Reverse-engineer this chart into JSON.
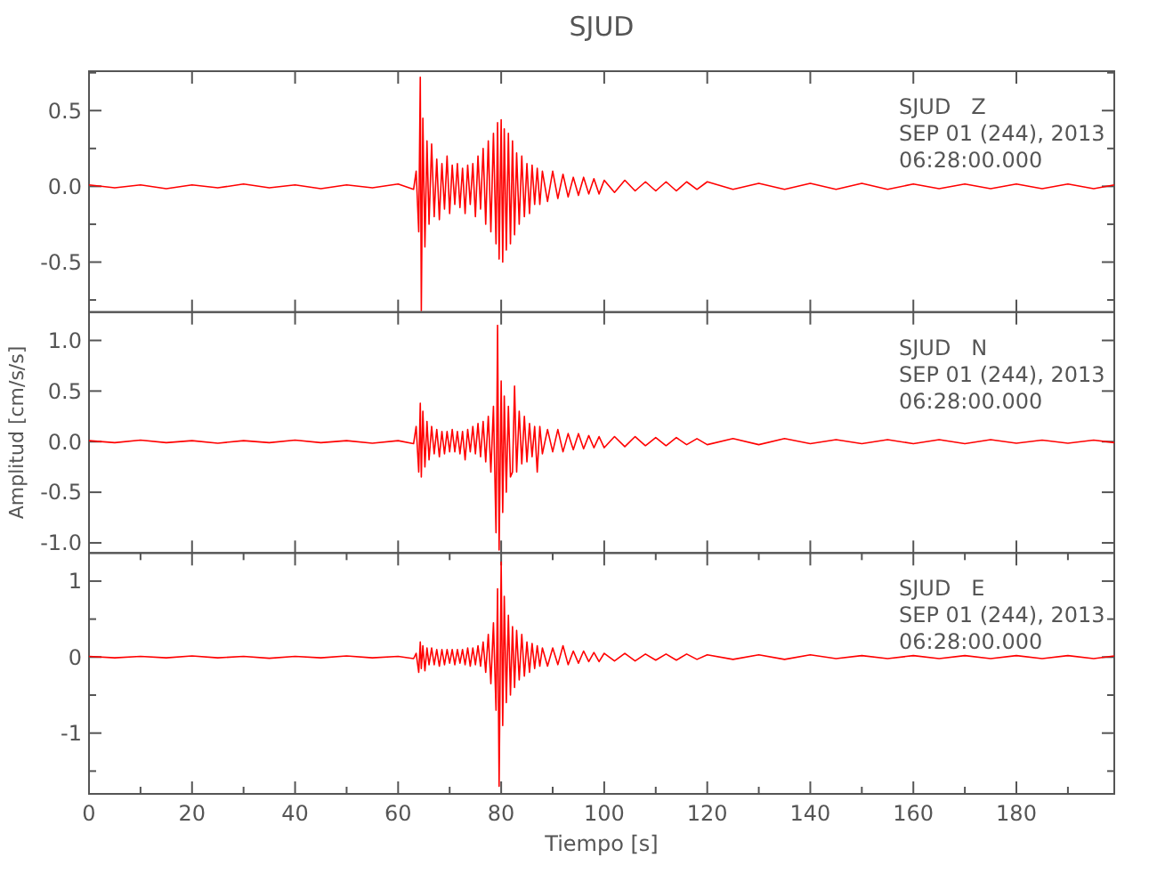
{
  "chart_data": [
    {
      "type": "line",
      "title": "SJUD",
      "annotations": [
        "SJUD   Z",
        "SEP 01 (244), 2013",
        "06:28:00.000"
      ],
      "xlim": [
        0,
        199
      ],
      "ylim": [
        -0.83,
        0.76
      ],
      "xticks": [
        {
          "value": 0,
          "label": null
        },
        {
          "value": 20,
          "label": null
        },
        {
          "value": 40,
          "label": null
        },
        {
          "value": 60,
          "label": null
        },
        {
          "value": 80,
          "label": null
        },
        {
          "value": 100,
          "label": null
        },
        {
          "value": 120,
          "label": null
        },
        {
          "value": 140,
          "label": null
        },
        {
          "value": 160,
          "label": null
        },
        {
          "value": 180,
          "label": null
        }
      ],
      "yticks": [
        {
          "value": 0.75,
          "label": null
        },
        0.5,
        {
          "value": 0.25,
          "label": null
        },
        {
          "value": 0,
          "label": "0.0"
        },
        {
          "value": -0.25,
          "label": null
        },
        -0.5,
        {
          "value": -0.75,
          "label": null
        }
      ],
      "tick_labels": "y",
      "grid": false,
      "series": [
        {
          "color": "#ff0000",
          "x": [
            0,
            5,
            10,
            15,
            20,
            25,
            30,
            35,
            40,
            45,
            50,
            55,
            60,
            63,
            63.5,
            64,
            64.3,
            64.5,
            64.8,
            65.2,
            65.6,
            66,
            66.5,
            67,
            67.5,
            68,
            68.5,
            69,
            69.5,
            70,
            70.5,
            71,
            71.5,
            72,
            72.5,
            73,
            73.5,
            74,
            74.5,
            75,
            75.5,
            76,
            76.5,
            77,
            77.5,
            78,
            78.5,
            79,
            79.3,
            79.6,
            80,
            80.3,
            80.6,
            81,
            81.4,
            81.8,
            82.2,
            82.6,
            83,
            83.5,
            84,
            84.5,
            85,
            85.5,
            86,
            86.5,
            87,
            87.5,
            88,
            89,
            90,
            91,
            92,
            93,
            94,
            95,
            96,
            97,
            98,
            99,
            100,
            102,
            104,
            106,
            108,
            110,
            112,
            114,
            116,
            118,
            120,
            125,
            130,
            135,
            140,
            145,
            150,
            155,
            160,
            165,
            170,
            175,
            180,
            185,
            190,
            195,
            199
          ],
          "values": [
            0.01,
            -0.01,
            0.01,
            -0.015,
            0.01,
            -0.01,
            0.015,
            -0.01,
            0.01,
            -0.015,
            0.01,
            -0.01,
            0.015,
            -0.02,
            0.1,
            -0.3,
            0.72,
            -0.82,
            0.45,
            -0.4,
            0.3,
            -0.25,
            0.28,
            -0.2,
            0.18,
            -0.22,
            0.15,
            -0.15,
            0.2,
            -0.18,
            0.14,
            -0.12,
            0.15,
            -0.14,
            0.12,
            -0.18,
            0.14,
            -0.12,
            0.15,
            -0.2,
            0.2,
            -0.15,
            0.25,
            -0.25,
            0.3,
            -0.3,
            0.35,
            -0.38,
            0.42,
            -0.48,
            0.44,
            -0.5,
            0.38,
            -0.42,
            0.35,
            -0.38,
            0.3,
            -0.32,
            0.22,
            -0.25,
            0.2,
            -0.2,
            0.15,
            -0.18,
            0.14,
            -0.12,
            0.12,
            -0.12,
            0.1,
            -0.1,
            0.1,
            -0.08,
            0.08,
            -0.07,
            0.06,
            -0.06,
            0.06,
            -0.05,
            0.05,
            -0.05,
            0.04,
            -0.04,
            0.04,
            -0.03,
            0.03,
            -0.03,
            0.03,
            -0.03,
            0.03,
            -0.02,
            0.03,
            -0.02,
            0.02,
            -0.02,
            0.02,
            -0.02,
            0.02,
            -0.02,
            0.015,
            -0.015,
            0.015,
            -0.015,
            0.015,
            -0.015,
            0.015,
            -0.015,
            0.01
          ]
        }
      ]
    },
    {
      "type": "line",
      "ylabel": "Amplitud [cm/s/s]",
      "annotations": [
        "SJUD   N",
        "SEP 01 (244), 2013",
        "06:28:00.000"
      ],
      "xlim": [
        0,
        199
      ],
      "ylim": [
        -1.1,
        1.28
      ],
      "xticks": [
        {
          "value": 0,
          "label": null
        },
        {
          "value": 20,
          "label": null
        },
        {
          "value": 40,
          "label": null
        },
        {
          "value": 60,
          "label": null
        },
        {
          "value": 80,
          "label": null
        },
        {
          "value": 100,
          "label": null
        },
        {
          "value": 120,
          "label": null
        },
        {
          "value": 140,
          "label": null
        },
        {
          "value": 160,
          "label": null
        },
        {
          "value": 180,
          "label": null
        }
      ],
      "yticks": [
        {
          "value": 1,
          "label": "1.0"
        },
        0.5,
        {
          "value": 0,
          "label": "0.0"
        },
        -0.5,
        {
          "value": -1,
          "label": "-1.0"
        }
      ],
      "tick_labels": "y",
      "grid": false,
      "series": [
        {
          "color": "#ff0000",
          "x": [
            0,
            5,
            10,
            15,
            20,
            25,
            30,
            35,
            40,
            45,
            50,
            55,
            60,
            63,
            63.5,
            64,
            64.3,
            64.5,
            64.8,
            65.2,
            65.6,
            66,
            66.5,
            67,
            67.5,
            68,
            68.5,
            69,
            69.5,
            70,
            70.5,
            71,
            71.5,
            72,
            72.5,
            73,
            73.5,
            74,
            74.5,
            75,
            75.5,
            76,
            76.5,
            77,
            77.5,
            78,
            78.5,
            79,
            79.3,
            79.6,
            80,
            80.3,
            80.6,
            81,
            81.4,
            81.8,
            82.2,
            82.6,
            83,
            83.5,
            84,
            84.5,
            85,
            85.5,
            86,
            86.5,
            87,
            87.5,
            88,
            89,
            90,
            91,
            92,
            93,
            94,
            95,
            96,
            97,
            98,
            99,
            100,
            102,
            104,
            106,
            108,
            110,
            112,
            114,
            116,
            118,
            120,
            125,
            130,
            135,
            140,
            145,
            150,
            155,
            160,
            165,
            170,
            175,
            180,
            185,
            190,
            195,
            199
          ],
          "values": [
            0.01,
            -0.01,
            0.015,
            -0.01,
            0.01,
            -0.015,
            0.01,
            -0.01,
            0.015,
            -0.01,
            0.01,
            -0.015,
            0.01,
            -0.02,
            0.15,
            -0.3,
            0.38,
            -0.35,
            0.3,
            -0.25,
            0.2,
            -0.18,
            0.15,
            -0.12,
            0.12,
            -0.15,
            0.1,
            -0.12,
            0.1,
            -0.1,
            0.12,
            -0.1,
            0.1,
            -0.12,
            0.1,
            -0.18,
            0.12,
            -0.1,
            0.15,
            -0.12,
            0.18,
            -0.15,
            0.2,
            -0.2,
            0.25,
            -0.3,
            0.35,
            -0.9,
            1.15,
            -1.07,
            0.6,
            -0.7,
            0.45,
            -0.5,
            0.35,
            -0.35,
            -0.3,
            0.55,
            -0.3,
            0.3,
            -0.22,
            0.25,
            -0.2,
            0.18,
            -0.15,
            0.15,
            -0.3,
            0.15,
            -0.12,
            0.12,
            -0.1,
            0.12,
            -0.1,
            0.08,
            -0.08,
            0.08,
            -0.07,
            0.06,
            -0.06,
            0.05,
            -0.06,
            0.05,
            -0.05,
            0.05,
            -0.04,
            0.04,
            -0.04,
            0.04,
            -0.03,
            0.03,
            -0.03,
            0.03,
            -0.03,
            0.03,
            -0.02,
            0.02,
            -0.02,
            0.02,
            -0.02,
            0.02,
            -0.02,
            0.02,
            -0.015,
            0.015,
            -0.015,
            0.015,
            -0.01
          ]
        }
      ]
    },
    {
      "type": "line",
      "xlabel": "Tiempo [s]",
      "annotations": [
        "SJUD   E",
        "SEP 01 (244), 2013",
        "06:28:00.000"
      ],
      "xlim": [
        0,
        199
      ],
      "ylim": [
        -1.8,
        1.37
      ],
      "xticks": [
        0,
        {
          "value": 10,
          "label": null
        },
        20,
        {
          "value": 30,
          "label": null
        },
        40,
        {
          "value": 50,
          "label": null
        },
        60,
        {
          "value": 70,
          "label": null
        },
        80,
        {
          "value": 90,
          "label": null
        },
        100,
        {
          "value": 110,
          "label": null
        },
        120,
        {
          "value": 130,
          "label": null
        },
        140,
        {
          "value": 150,
          "label": null
        },
        160,
        {
          "value": 170,
          "label": null
        },
        180,
        {
          "value": 190,
          "label": null
        }
      ],
      "yticks": [
        1,
        {
          "value": 0.5,
          "label": null
        },
        0,
        {
          "value": -0.5,
          "label": null
        },
        -1,
        {
          "value": -1.5,
          "label": null
        }
      ],
      "grid": false,
      "series": [
        {
          "color": "#ff0000",
          "x": [
            0,
            5,
            10,
            15,
            20,
            25,
            30,
            35,
            40,
            45,
            50,
            55,
            60,
            63,
            63.5,
            64,
            64.3,
            64.5,
            64.8,
            65.2,
            65.6,
            66,
            66.5,
            67,
            67.5,
            68,
            68.5,
            69,
            69.5,
            70,
            70.5,
            71,
            71.5,
            72,
            72.5,
            73,
            73.5,
            74,
            74.5,
            75,
            75.5,
            76,
            76.5,
            77,
            77.5,
            78,
            78.5,
            79,
            79.3,
            79.6,
            80,
            80.3,
            80.6,
            81,
            81.4,
            81.8,
            82.2,
            82.6,
            83,
            83.5,
            84,
            84.5,
            85,
            85.5,
            86,
            86.5,
            87,
            87.5,
            88,
            89,
            90,
            91,
            92,
            93,
            94,
            95,
            96,
            97,
            98,
            99,
            100,
            102,
            104,
            106,
            108,
            110,
            112,
            114,
            116,
            118,
            120,
            125,
            130,
            135,
            140,
            145,
            150,
            155,
            160,
            165,
            170,
            175,
            180,
            185,
            190,
            195,
            199
          ],
          "values": [
            0.01,
            -0.01,
            0.01,
            -0.01,
            0.015,
            -0.01,
            0.01,
            -0.015,
            0.01,
            -0.01,
            0.015,
            -0.01,
            0.01,
            -0.02,
            0.05,
            -0.2,
            0.2,
            -0.15,
            0.15,
            -0.18,
            0.12,
            -0.1,
            0.12,
            -0.1,
            0.1,
            -0.12,
            0.1,
            -0.1,
            0.1,
            -0.08,
            0.1,
            -0.1,
            0.1,
            -0.08,
            0.1,
            -0.1,
            0.12,
            -0.12,
            0.12,
            -0.1,
            0.15,
            -0.12,
            0.2,
            -0.2,
            0.3,
            -0.35,
            0.45,
            -0.7,
            0.9,
            -1.7,
            1.25,
            -0.9,
            0.8,
            -0.6,
            0.55,
            -0.5,
            0.4,
            -0.4,
            0.35,
            -0.3,
            0.3,
            -0.25,
            0.2,
            -0.2,
            0.18,
            -0.15,
            0.15,
            -0.12,
            0.12,
            -0.12,
            0.12,
            -0.1,
            0.15,
            -0.1,
            0.08,
            -0.08,
            0.08,
            -0.06,
            0.06,
            -0.06,
            0.05,
            -0.05,
            0.05,
            -0.05,
            0.04,
            -0.04,
            0.04,
            -0.04,
            0.04,
            -0.03,
            0.03,
            -0.03,
            0.03,
            -0.03,
            0.03,
            -0.02,
            0.02,
            -0.02,
            0.02,
            -0.02,
            0.02,
            -0.02,
            0.02,
            -0.02,
            0.02,
            -0.02,
            0.015
          ]
        }
      ]
    }
  ]
}
